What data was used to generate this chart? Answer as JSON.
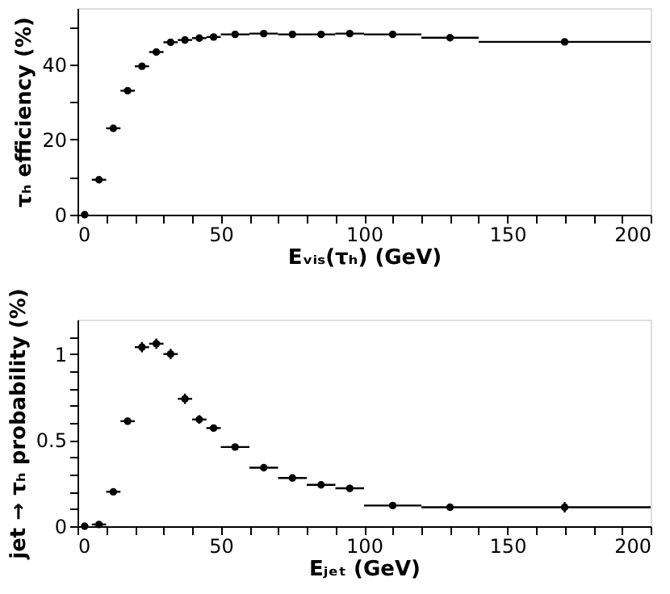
{
  "chart_data": [
    {
      "type": "scatter",
      "xlabel": "Eᵥᵢₛ(τₕ)  (GeV)",
      "ylabel": "τₕ efficiency  (%)",
      "x": [
        2.5,
        7.5,
        12.5,
        17.5,
        22.5,
        27.5,
        32.5,
        37.5,
        42.5,
        47.5,
        55,
        65,
        75,
        85,
        95,
        110,
        130,
        170
      ],
      "series": [
        {
          "color": "#000000",
          "values": [
            0,
            9.3,
            23.0,
            33.0,
            39.5,
            43.3,
            45.9,
            46.5,
            47.0,
            47.3,
            48.0,
            48.2,
            48.0,
            48.0,
            48.2,
            48.0,
            47.1,
            46.0
          ],
          "xerrors": [
            null,
            2.5,
            2.5,
            2.5,
            2.5,
            2.5,
            2.5,
            2.5,
            2.5,
            2.5,
            5,
            5,
            5,
            5,
            5,
            10,
            10,
            30
          ]
        }
      ],
      "xlim": [
        0,
        200
      ],
      "ylim": [
        0,
        55
      ],
      "xticks": [
        0,
        {
          "value": 10,
          "label": null
        },
        {
          "value": 20,
          "label": null
        },
        {
          "value": 30,
          "label": null
        },
        {
          "value": 40,
          "label": null
        },
        50,
        {
          "value": 60,
          "label": null
        },
        {
          "value": 70,
          "label": null
        },
        {
          "value": 80,
          "label": null
        },
        {
          "value": 90,
          "label": null
        },
        100,
        {
          "value": 110,
          "label": null
        },
        {
          "value": 120,
          "label": null
        },
        {
          "value": 130,
          "label": null
        },
        {
          "value": 140,
          "label": null
        },
        150,
        {
          "value": 160,
          "label": null
        },
        {
          "value": 170,
          "label": null
        },
        {
          "value": 180,
          "label": null
        },
        {
          "value": 190,
          "label": null
        },
        200
      ],
      "yticks": [
        0,
        {
          "value": 10,
          "label": null
        },
        20,
        {
          "value": 30,
          "label": null
        },
        40,
        {
          "value": 50,
          "label": null
        }
      ],
      "marker": "circle",
      "grid": false
    },
    {
      "type": "scatter",
      "xlabel": "Eⱼₑₜ  (GeV)",
      "ylabel": "jet → τₕ probability  (%)",
      "x": [
        2.5,
        7.5,
        12.5,
        17.5,
        22.5,
        27.5,
        32.5,
        37.5,
        42.5,
        47.5,
        55,
        65,
        75,
        85,
        95,
        110,
        130,
        170
      ],
      "series": [
        {
          "color": "#000000",
          "values": [
            0,
            0.01,
            0.2,
            0.61,
            1.04,
            1.06,
            1.0,
            0.74,
            0.62,
            0.57,
            0.46,
            0.34,
            0.28,
            0.24,
            0.22,
            0.12,
            0.11,
            0.11
          ],
          "errors": [
            null,
            null,
            null,
            0.02,
            0.03,
            0.03,
            0.03,
            0.03,
            0.025,
            0.02,
            null,
            null,
            null,
            0.02,
            0.02,
            null,
            0.02,
            0.03
          ],
          "xerrors": [
            null,
            2.5,
            2.5,
            2.5,
            2.5,
            2.5,
            2.5,
            2.5,
            2.5,
            2.5,
            5,
            5,
            5,
            5,
            5,
            10,
            10,
            30
          ]
        }
      ],
      "xlim": [
        0,
        200
      ],
      "ylim": [
        0,
        1.2
      ],
      "xticks": [
        0,
        {
          "value": 10,
          "label": null
        },
        {
          "value": 20,
          "label": null
        },
        {
          "value": 30,
          "label": null
        },
        {
          "value": 40,
          "label": null
        },
        50,
        {
          "value": 60,
          "label": null
        },
        {
          "value": 70,
          "label": null
        },
        {
          "value": 80,
          "label": null
        },
        {
          "value": 90,
          "label": null
        },
        100,
        {
          "value": 110,
          "label": null
        },
        {
          "value": 120,
          "label": null
        },
        {
          "value": 130,
          "label": null
        },
        {
          "value": 140,
          "label": null
        },
        150,
        {
          "value": 160,
          "label": null
        },
        {
          "value": 170,
          "label": null
        },
        {
          "value": 180,
          "label": null
        },
        {
          "value": 190,
          "label": null
        },
        200
      ],
      "yticks": [
        0,
        {
          "value": 0.1,
          "label": null
        },
        {
          "value": 0.2,
          "label": null
        },
        {
          "value": 0.3,
          "label": null
        },
        {
          "value": 0.4,
          "label": null
        },
        0.5,
        {
          "value": 0.6,
          "label": null
        },
        {
          "value": 0.7,
          "label": null
        },
        {
          "value": 0.8,
          "label": null
        },
        {
          "value": 0.9,
          "label": null
        },
        1,
        {
          "value": 1.1,
          "label": null
        }
      ],
      "marker": "circle",
      "grid": false
    }
  ]
}
